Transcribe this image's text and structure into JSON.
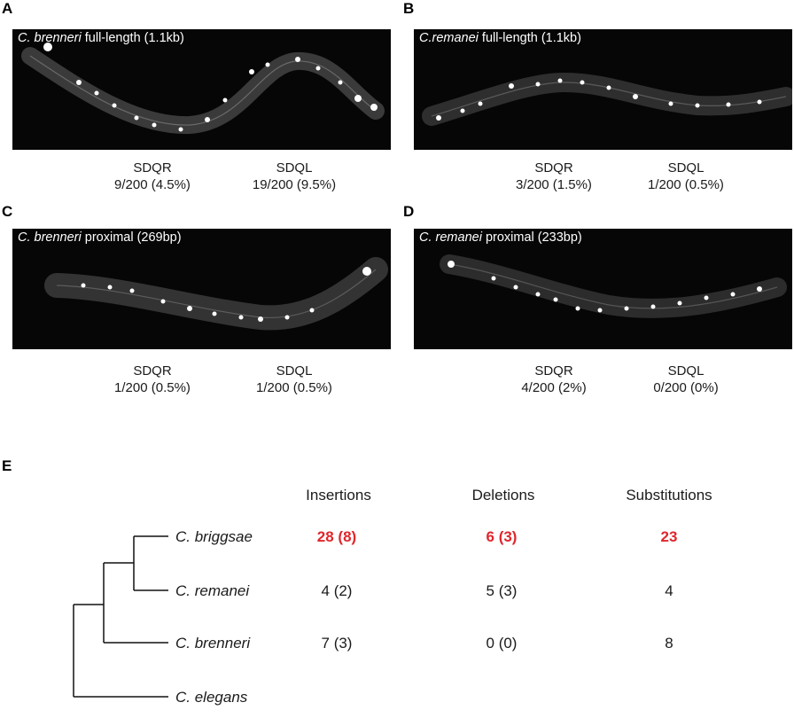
{
  "panels": [
    {
      "letter": "A",
      "species": "C. brenneri",
      "descriptor": "full-length (1.1kb)",
      "counts": [
        {
          "neuron": "SDQR",
          "value": "9/200 (4.5%)"
        },
        {
          "neuron": "SDQL",
          "value": "19/200 (9.5%)"
        }
      ]
    },
    {
      "letter": "B",
      "species": "C.remanei",
      "descriptor": "full-length (1.1kb)",
      "counts": [
        {
          "neuron": "SDQR",
          "value": "3/200 (1.5%)"
        },
        {
          "neuron": "SDQL",
          "value": "1/200 (0.5%)"
        }
      ]
    },
    {
      "letter": "C",
      "species": "C. brenneri",
      "descriptor": "proximal (269bp)",
      "counts": [
        {
          "neuron": "SDQR",
          "value": "1/200 (0.5%)"
        },
        {
          "neuron": "SDQL",
          "value": "1/200 (0.5%)"
        }
      ]
    },
    {
      "letter": "D",
      "species": "C. remanei",
      "descriptor": "proximal (233bp)",
      "counts": [
        {
          "neuron": "SDQR",
          "value": "4/200 (2%)"
        },
        {
          "neuron": "SDQL",
          "value": "0/200 (0%)"
        }
      ]
    }
  ],
  "table": {
    "letter": "E",
    "columns": [
      "Insertions",
      "Deletions",
      "Substitutions"
    ],
    "rows": [
      {
        "species": "C. briggsae",
        "values": [
          "28 (8)",
          "6 (3)",
          "23"
        ],
        "highlight": true
      },
      {
        "species": "C. remanei",
        "values": [
          "4 (2)",
          "5 (3)",
          "4"
        ],
        "highlight": false
      },
      {
        "species": "C. brenneri",
        "values": [
          "7 (3)",
          "0 (0)",
          "8"
        ],
        "highlight": false
      },
      {
        "species": "C. elegans",
        "values": [],
        "highlight": false
      }
    ],
    "highlight_color": "#e0262c"
  }
}
